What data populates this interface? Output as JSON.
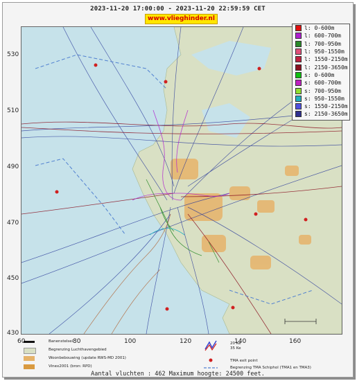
{
  "title": "2023-11-20 17:00:00 - 2023-11-20 22:59:59 CET",
  "site": "www.vlieghinder.nl",
  "y_ticks": [
    "530",
    "510",
    "490",
    "470",
    "450",
    "430"
  ],
  "x_ticks": [
    "60",
    "80",
    "100",
    "120",
    "140",
    "160"
  ],
  "legend": [
    {
      "label": "l: 0-600m",
      "color": "#e01010"
    },
    {
      "label": "l: 600-700m",
      "color": "#b020d0"
    },
    {
      "label": "l: 700-950m",
      "color": "#2a8a2a"
    },
    {
      "label": "l: 950-1550m",
      "color": "#e0507a"
    },
    {
      "label": "l: 1550-2150m",
      "color": "#c02040"
    },
    {
      "label": "l: 2150-3650m",
      "color": "#8a1020"
    },
    {
      "label": "s: 0-600m",
      "color": "#10c010"
    },
    {
      "label": "s: 600-700m",
      "color": "#c020c0"
    },
    {
      "label": "s: 700-950m",
      "color": "#90e030"
    },
    {
      "label": "s: 950-1550m",
      "color": "#20b0c0"
    },
    {
      "label": "s: 1550-2150m",
      "color": "#5050e0"
    },
    {
      "label": "s: 2150-3650m",
      "color": "#303090"
    }
  ],
  "bottom_legend": {
    "runway": "Banenstelsel",
    "airport_boundary": "Begrenzing Luchthavengebied",
    "housing": "Woonbebouwing (update RWS-MD 2001)",
    "vinex": "Vinex2001 (bron: RPD)",
    "kv20": "20 Ke",
    "kv35": "35 Ke",
    "tma_exit": "TMA exit point",
    "tma_boundary": "Begrenzing TMA Schiphol  (TMA1 en TMA3)"
  },
  "footer": "Aantal vluchten : 462 Maximum hoogte: 24500 feet.",
  "colors": {
    "sea": "#c6e2ea",
    "land": "#d9e0c4",
    "housing": "#e6b36a"
  }
}
